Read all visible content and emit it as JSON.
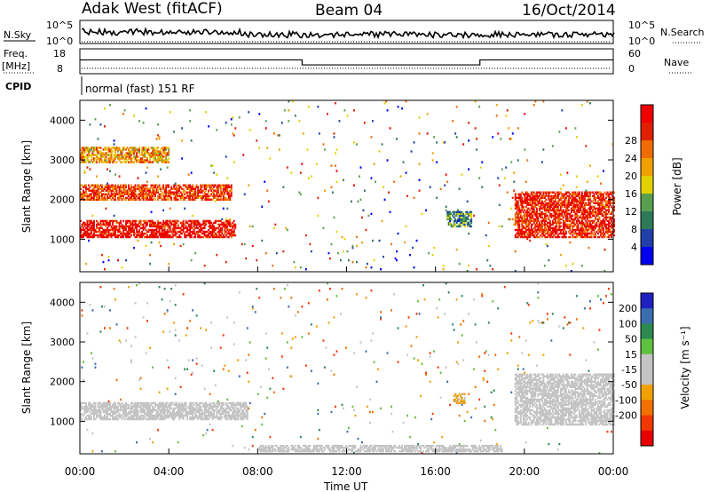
{
  "header": {
    "station": "Adak West (fitACF)",
    "beam": "Beam 04",
    "date": "16/Oct/2014"
  },
  "top_panels": {
    "nsky": {
      "label": "N.Sky",
      "tick_top": "10^5",
      "tick_bottom": "10^0",
      "right_top": "10^5",
      "right_bottom": "10^0",
      "right_label": "N.Search"
    },
    "freq": {
      "label": "Freq.",
      "unit": "[MHz]",
      "tick_top": "18",
      "tick_bottom": "8",
      "right_top": "60",
      "right_bottom": "0",
      "right_label": "Nave",
      "segments": [
        [
          0,
          10,
          13.5
        ],
        [
          10,
          18,
          10.8
        ],
        [
          18,
          24,
          13.5
        ]
      ]
    },
    "cpid": {
      "label": "CPID",
      "text": "normal (fast) 151 RF"
    }
  },
  "colors": {
    "power_scale": [
      "#0000ee",
      "#2040a8",
      "#2e7a58",
      "#58a050",
      "#e2d000",
      "#f0a000",
      "#f06c00",
      "#e02000",
      "#ee0000"
    ],
    "velocity_scale": [
      "#2020c0",
      "#3c6cb0",
      "#2c8a50",
      "#60c040",
      "#c4c4c4",
      "#c4c4c4",
      "#f0a000",
      "#f07000",
      "#f03800",
      "#e80000"
    ]
  },
  "chart_data": [
    {
      "type": "heatmap",
      "title": "",
      "xlabel": "Time UT",
      "ylabel": "Slant Range [km]",
      "xlim": [
        0,
        24
      ],
      "ylim": [
        180,
        4500
      ],
      "x_ticks": [
        "00:00",
        "04:00",
        "08:00",
        "12:00",
        "16:00",
        "20:00",
        "00:00"
      ],
      "y_ticks": [
        "1000",
        "2000",
        "3000",
        "4000"
      ],
      "colorbar": {
        "label": "Power [dB]",
        "ticks": [
          "4",
          "8",
          "12",
          "16",
          "20",
          "24",
          "28"
        ],
        "range": [
          0,
          32
        ]
      },
      "features": [
        {
          "name": "lower band",
          "x_start_ut": 0,
          "x_end_ut": 7.0,
          "range_km": [
            1000,
            1450
          ],
          "power_db": 30
        },
        {
          "name": "upper band",
          "x_start_ut": 0,
          "x_end_ut": 6.8,
          "range_km": [
            1950,
            2350
          ],
          "power_db": 26
        },
        {
          "name": "top band",
          "x_start_ut": 0,
          "x_end_ut": 4.0,
          "range_km": [
            2900,
            3300
          ],
          "power_db": 20
        },
        {
          "name": "evening band",
          "x_start_ut": 19.5,
          "x_end_ut": 24,
          "range_km": [
            1000,
            2200
          ],
          "power_db": 28
        },
        {
          "name": "mid-day patch",
          "x_start_ut": 16.5,
          "x_end_ut": 17.6,
          "range_km": [
            1300,
            1700
          ],
          "power_db": 10
        }
      ]
    },
    {
      "type": "heatmap",
      "title": "",
      "xlabel": "Time UT",
      "ylabel": "Slant Range [km]",
      "xlim": [
        0,
        24
      ],
      "ylim": [
        180,
        4500
      ],
      "x_ticks": [
        "00:00",
        "04:00",
        "08:00",
        "12:00",
        "16:00",
        "20:00",
        "00:00"
      ],
      "y_ticks": [
        "1000",
        "2000",
        "3000",
        "4000"
      ],
      "colorbar": {
        "label": "Velocity [m s⁻¹]",
        "ticks": [
          "200",
          "100",
          "50",
          "15",
          "-15",
          "-50",
          "-100",
          "-200"
        ],
        "range": [
          -250,
          250
        ]
      },
      "features": [
        {
          "name": "ground scatter lower",
          "x_start_ut": 0,
          "x_end_ut": 7.5,
          "range_km": [
            1000,
            1450
          ],
          "velocity": 0
        },
        {
          "name": "ground scatter evening",
          "x_start_ut": 19.5,
          "x_end_ut": 24,
          "range_km": [
            900,
            2200
          ],
          "velocity": 0
        },
        {
          "name": "orange patch",
          "x_start_ut": 16.8,
          "x_end_ut": 17.3,
          "range_km": [
            1400,
            1700
          ],
          "velocity": -60
        },
        {
          "name": "near range",
          "x_start_ut": 8,
          "x_end_ut": 19,
          "range_km": [
            200,
            400
          ],
          "velocity": -30
        }
      ]
    }
  ]
}
